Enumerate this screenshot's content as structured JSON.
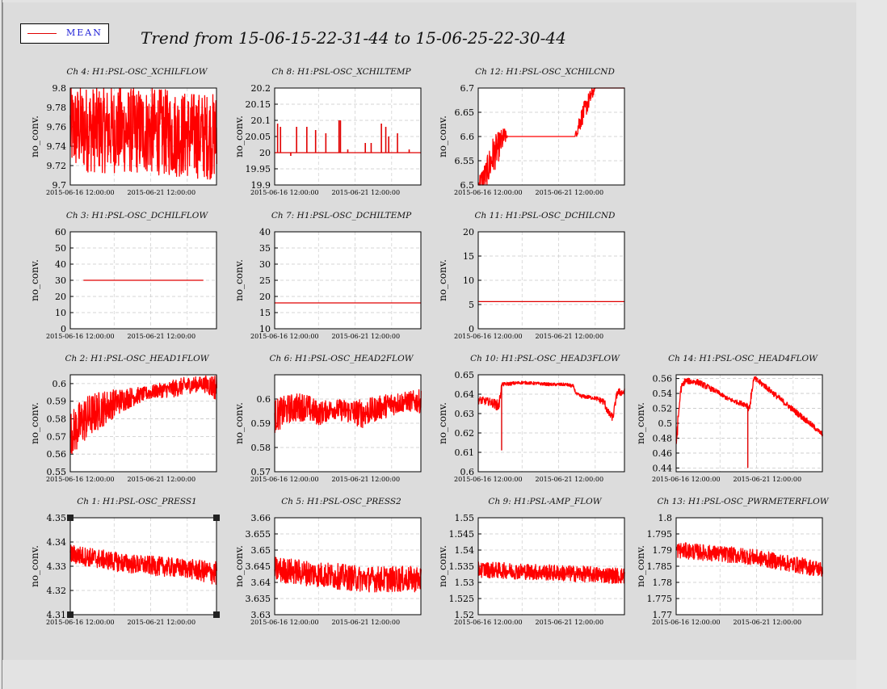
{
  "legend": {
    "label": "MEAN",
    "color": "#ff0000"
  },
  "title": "Trend from 15-06-15-22-31-44 to 15-06-25-22-30-44",
  "chart_data": [
    {
      "type": "line",
      "title": "Ch 4: H1:PSL-OSC_XCHILFLOW",
      "ylabel": "no_conv.",
      "yticks": [
        "9.7",
        "9.72",
        "9.74",
        "9.76",
        "9.78",
        "9.8"
      ],
      "ylim": [
        9.7,
        9.8
      ],
      "xticks": [
        "2015-06-16 12:00:00",
        "2015-06-21 12:00:00"
      ],
      "pattern": "noisy",
      "series": [
        {
          "x": [
            0,
            0.1,
            0.2,
            0.3,
            0.4,
            0.5,
            0.6,
            0.7,
            0.8,
            0.9,
            1.0
          ],
          "values": [
            9.758,
            9.758,
            9.757,
            9.757,
            9.756,
            9.756,
            9.755,
            9.753,
            9.752,
            9.751,
            9.75
          ],
          "noise": [
            0.045,
            0.045,
            0.045,
            0.045,
            0.045,
            0.045,
            0.045,
            0.045,
            0.045,
            0.045,
            0.045
          ]
        }
      ]
    },
    {
      "type": "line",
      "title": "Ch 8: H1:PSL-OSC_XCHILTEMP",
      "ylabel": "no_conv.",
      "yticks": [
        "19.9",
        "19.95",
        "20",
        "20.05",
        "20.1",
        "20.15",
        "20.2"
      ],
      "ylim": [
        19.9,
        20.2
      ],
      "xticks": [
        "2015-06-16 12:00:00",
        "2015-06-21 12:00:00"
      ],
      "pattern": "spikes",
      "series": [
        {
          "base": 20.0,
          "spikes": [
            [
              0.02,
              20.09
            ],
            [
              0.04,
              20.08
            ],
            [
              0.15,
              20.08
            ],
            [
              0.22,
              20.08
            ],
            [
              0.28,
              20.07
            ],
            [
              0.35,
              20.06
            ],
            [
              0.44,
              20.1
            ],
            [
              0.45,
              20.1
            ],
            [
              0.5,
              20.01
            ],
            [
              0.62,
              20.03
            ],
            [
              0.66,
              20.03
            ],
            [
              0.73,
              20.09
            ],
            [
              0.76,
              20.08
            ],
            [
              0.78,
              20.05
            ],
            [
              0.84,
              20.06
            ],
            [
              0.92,
              20.01
            ],
            [
              0.11,
              19.99
            ]
          ]
        }
      ]
    },
    {
      "type": "line",
      "title": "Ch 12: H1:PSL-OSC_XCHILCND",
      "ylabel": "no_conv.",
      "yticks": [
        "6.5",
        "6.55",
        "6.6",
        "6.65",
        "6.7"
      ],
      "ylim": [
        6.5,
        6.7
      ],
      "xticks": [
        "2015-06-16 12:00:00",
        "2015-06-21 12:00:00"
      ],
      "pattern": "steps",
      "series": [
        {
          "x": [
            0,
            0.05,
            0.1,
            0.18,
            0.2,
            0.22,
            0.66,
            0.68,
            0.72,
            0.78,
            0.8,
            1.0
          ],
          "values": [
            6.5,
            6.52,
            6.56,
            6.6,
            6.6,
            6.6,
            6.6,
            6.62,
            6.65,
            6.69,
            6.7,
            6.7
          ],
          "noise": [
            0.02,
            0.03,
            0.04,
            0.02,
            0.0,
            0.0,
            0.0,
            0.02,
            0.02,
            0.015,
            0.0,
            0.0
          ]
        }
      ]
    },
    {
      "type": "line",
      "title": "Ch 3: H1:PSL-OSC_DCHILFLOW",
      "ylabel": "no_conv.",
      "yticks": [
        "0",
        "10",
        "20",
        "30",
        "40",
        "50",
        "60"
      ],
      "ylim": [
        0,
        60
      ],
      "xticks": [
        "2015-06-16 12:00:00",
        "2015-06-21 12:00:00"
      ],
      "pattern": "flat",
      "series": [
        {
          "x": [
            0.09,
            0.91
          ],
          "values": [
            30,
            30
          ]
        }
      ]
    },
    {
      "type": "line",
      "title": "Ch 7: H1:PSL-OSC_DCHILTEMP",
      "ylabel": "no_conv.",
      "yticks": [
        "10",
        "15",
        "20",
        "25",
        "30",
        "35",
        "40"
      ],
      "ylim": [
        10,
        40
      ],
      "xticks": [
        "2015-06-16 12:00:00",
        "2015-06-21 12:00:00"
      ],
      "pattern": "flat",
      "series": [
        {
          "x": [
            0,
            1
          ],
          "values": [
            18,
            18
          ]
        }
      ]
    },
    {
      "type": "line",
      "title": "Ch 11: H1:PSL-OSC_DCHILCND",
      "ylabel": "no_conv.",
      "yticks": [
        "0",
        "5",
        "10",
        "15",
        "20"
      ],
      "ylim": [
        0,
        20
      ],
      "xticks": [
        "2015-06-16 12:00:00",
        "2015-06-21 12:00:00"
      ],
      "pattern": "flat",
      "series": [
        {
          "x": [
            0,
            1
          ],
          "values": [
            5.6,
            5.6
          ]
        }
      ]
    },
    {
      "type": "line",
      "title": "Ch 2: H1:PSL-OSC_HEAD1FLOW",
      "ylabel": "no_conv.",
      "yticks": [
        "0.55",
        "0.56",
        "0.57",
        "0.58",
        "0.59",
        "0.6"
      ],
      "ylim": [
        0.55,
        0.605
      ],
      "xticks": [
        "2015-06-16 12:00:00",
        "2015-06-21 12:00:00"
      ],
      "pattern": "noisy",
      "series": [
        {
          "x": [
            0,
            0.05,
            0.1,
            0.2,
            0.3,
            0.4,
            0.5,
            0.6,
            0.7,
            0.8,
            0.9,
            0.95,
            1.0
          ],
          "values": [
            0.572,
            0.575,
            0.58,
            0.585,
            0.589,
            0.592,
            0.594,
            0.596,
            0.597,
            0.599,
            0.6,
            0.599,
            0.598
          ],
          "noise": [
            0.012,
            0.014,
            0.013,
            0.011,
            0.008,
            0.006,
            0.004,
            0.004,
            0.005,
            0.005,
            0.004,
            0.006,
            0.008
          ]
        }
      ]
    },
    {
      "type": "line",
      "title": "Ch 6: H1:PSL-OSC_HEAD2FLOW",
      "ylabel": "no_conv.",
      "yticks": [
        "0.57",
        "0.58",
        "0.59",
        "0.6"
      ],
      "ylim": [
        0.57,
        0.61
      ],
      "xticks": [
        "2015-06-16 12:00:00",
        "2015-06-21 12:00:00"
      ],
      "pattern": "noisy",
      "series": [
        {
          "x": [
            0,
            0.1,
            0.2,
            0.3,
            0.4,
            0.5,
            0.6,
            0.7,
            0.8,
            0.9,
            1.0
          ],
          "values": [
            0.593,
            0.596,
            0.597,
            0.594,
            0.596,
            0.595,
            0.594,
            0.596,
            0.598,
            0.599,
            0.599
          ],
          "noise": [
            0.007,
            0.006,
            0.006,
            0.005,
            0.004,
            0.005,
            0.006,
            0.005,
            0.005,
            0.004,
            0.005
          ]
        }
      ]
    },
    {
      "type": "line",
      "title": "Ch 10: H1:PSL-OSC_HEAD3FLOW",
      "ylabel": "no_conv.",
      "yticks": [
        "0.6",
        "0.61",
        "0.62",
        "0.63",
        "0.64",
        "0.65"
      ],
      "ylim": [
        0.6,
        0.65
      ],
      "xticks": [
        "2015-06-16 12:00:00",
        "2015-06-21 12:00:00"
      ],
      "pattern": "noisy",
      "series": [
        {
          "x": [
            0,
            0.08,
            0.14,
            0.16,
            0.3,
            0.5,
            0.6,
            0.65,
            0.67,
            0.7,
            0.8,
            0.86,
            0.89,
            0.92,
            0.95,
            1.0
          ],
          "values": [
            0.637,
            0.636,
            0.634,
            0.645,
            0.646,
            0.645,
            0.645,
            0.644,
            0.64,
            0.639,
            0.638,
            0.636,
            0.63,
            0.628,
            0.641,
            0.641
          ],
          "noise": [
            0.002,
            0.002,
            0.003,
            0.001,
            0.0008,
            0.0008,
            0.0008,
            0.001,
            0.001,
            0.001,
            0.001,
            0.002,
            0.002,
            0.002,
            0.002,
            0.002
          ]
        }
      ],
      "dips": [
        [
          0.16,
          0.611
        ]
      ]
    },
    {
      "type": "line",
      "title": "Ch 14: H1:PSL-OSC_HEAD4FLOW",
      "ylabel": "no_conv.",
      "yticks": [
        "0.44",
        "0.46",
        "0.48",
        "0.5",
        "0.52",
        "0.54",
        "0.56"
      ],
      "ylim": [
        0.435,
        0.565
      ],
      "xticks": [
        "2015-06-16 12:00:00",
        "2015-06-21 12:00:00"
      ],
      "pattern": "noisy",
      "series": [
        {
          "x": [
            0,
            0.03,
            0.06,
            0.15,
            0.2,
            0.28,
            0.35,
            0.42,
            0.48,
            0.5,
            0.53,
            0.6,
            0.7,
            0.8,
            0.9,
            1.0
          ],
          "values": [
            0.475,
            0.545,
            0.557,
            0.555,
            0.55,
            0.542,
            0.533,
            0.528,
            0.525,
            0.52,
            0.56,
            0.551,
            0.534,
            0.518,
            0.502,
            0.485
          ],
          "noise": [
            0.01,
            0.006,
            0.004,
            0.004,
            0.004,
            0.003,
            0.003,
            0.003,
            0.004,
            0.006,
            0.004,
            0.004,
            0.004,
            0.004,
            0.004,
            0.003
          ]
        }
      ],
      "dips": [
        [
          0.49,
          0.44
        ]
      ]
    },
    {
      "type": "line",
      "title": "Ch 1: H1:PSL-OSC_PRESS1",
      "ylabel": "no_conv.",
      "yticks": [
        "4.31",
        "4.32",
        "4.33",
        "4.34",
        "4.35"
      ],
      "ylim": [
        4.31,
        4.35
      ],
      "xticks": [
        "2015-06-16 12:00:00",
        "2015-06-21 12:00:00"
      ],
      "pattern": "noisy",
      "series": [
        {
          "x": [
            0,
            0.2,
            0.4,
            0.6,
            0.8,
            1.0
          ],
          "values": [
            4.335,
            4.333,
            4.331,
            4.33,
            4.329,
            4.327
          ],
          "noise": [
            0.004,
            0.004,
            0.004,
            0.004,
            0.004,
            0.005
          ]
        }
      ]
    },
    {
      "type": "line",
      "title": "Ch 5: H1:PSL-OSC_PRESS2",
      "ylabel": "no_conv.",
      "yticks": [
        "3.63",
        "3.635",
        "3.64",
        "3.645",
        "3.65",
        "3.655",
        "3.66"
      ],
      "ylim": [
        3.63,
        3.66
      ],
      "xticks": [
        "2015-06-16 12:00:00",
        "2015-06-21 12:00:00"
      ],
      "pattern": "noisy",
      "series": [
        {
          "x": [
            0,
            0.2,
            0.4,
            0.6,
            0.8,
            1.0
          ],
          "values": [
            3.644,
            3.643,
            3.642,
            3.641,
            3.641,
            3.641
          ],
          "noise": [
            0.004,
            0.004,
            0.004,
            0.004,
            0.004,
            0.004
          ]
        }
      ]
    },
    {
      "type": "line",
      "title": "Ch 9: H1:PSL-AMP_FLOW",
      "ylabel": "no_conv.",
      "yticks": [
        "1.52",
        "1.525",
        "1.53",
        "1.535",
        "1.54",
        "1.545",
        "1.55"
      ],
      "ylim": [
        1.52,
        1.55
      ],
      "xticks": [
        "2015-06-16 12:00:00",
        "2015-06-21 12:00:00"
      ],
      "pattern": "noisy",
      "series": [
        {
          "x": [
            0,
            0.5,
            1.0
          ],
          "values": [
            1.534,
            1.533,
            1.532
          ],
          "noise": [
            0.0025,
            0.0025,
            0.0025
          ]
        }
      ]
    },
    {
      "type": "line",
      "title": "Ch 13: H1:PSL-OSC_PWRMETERFLOW",
      "ylabel": "no_conv.",
      "yticks": [
        "1.77",
        "1.775",
        "1.78",
        "1.785",
        "1.79",
        "1.795",
        "1.8"
      ],
      "ylim": [
        1.77,
        1.8
      ],
      "xticks": [
        "2015-06-16 12:00:00",
        "2015-06-21 12:00:00"
      ],
      "pattern": "noisy",
      "series": [
        {
          "x": [
            0,
            0.5,
            1.0
          ],
          "values": [
            1.79,
            1.788,
            1.784
          ],
          "noise": [
            0.0025,
            0.0025,
            0.0025
          ]
        }
      ]
    }
  ]
}
